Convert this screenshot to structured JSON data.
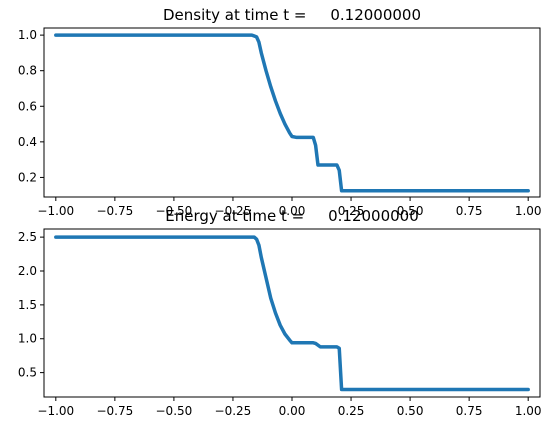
{
  "chart_data": [
    {
      "type": "line",
      "title": "Density at time t =     0.12000000",
      "xlabel": "",
      "ylabel": "",
      "xlim": [
        -1.05,
        1.05
      ],
      "ylim": [
        0.09,
        1.04
      ],
      "xticks": [
        -1.0,
        -0.75,
        -0.5,
        -0.25,
        0.0,
        0.25,
        0.5,
        0.75,
        1.0
      ],
      "xtick_labels": [
        "−1.00",
        "−0.75",
        "−0.50",
        "−0.25",
        "0.00",
        "0.25",
        "0.50",
        "0.75",
        "1.00"
      ],
      "yticks": [
        0.2,
        0.4,
        0.6,
        0.8,
        1.0
      ],
      "ytick_labels": [
        "0.2",
        "0.4",
        "0.6",
        "0.8",
        "1.0"
      ],
      "grid": false,
      "color": "#1f77b4",
      "series": [
        {
          "x": [
            -1.0,
            -0.17,
            -0.15,
            -0.14,
            -0.13,
            -0.11,
            -0.09,
            -0.07,
            -0.05,
            -0.03,
            -0.01,
            0.0,
            0.02,
            0.09,
            0.1,
            0.11,
            0.19,
            0.2,
            0.21,
            1.0
          ],
          "y": [
            1.0,
            1.0,
            0.99,
            0.96,
            0.9,
            0.8,
            0.71,
            0.63,
            0.56,
            0.5,
            0.45,
            0.43,
            0.425,
            0.425,
            0.38,
            0.27,
            0.27,
            0.24,
            0.125,
            0.125
          ]
        }
      ]
    },
    {
      "type": "line",
      "title": "Energy at time t =     0.12000000",
      "xlabel": "",
      "ylabel": "",
      "xlim": [
        -1.05,
        1.05
      ],
      "ylim": [
        0.14,
        2.62
      ],
      "xticks": [
        -1.0,
        -0.75,
        -0.5,
        -0.25,
        0.0,
        0.25,
        0.5,
        0.75,
        1.0
      ],
      "xtick_labels": [
        "−1.00",
        "−0.75",
        "−0.50",
        "−0.25",
        "0.00",
        "0.25",
        "0.50",
        "0.75",
        "1.00"
      ],
      "yticks": [
        0.5,
        1.0,
        1.5,
        2.0,
        2.5
      ],
      "ytick_labels": [
        "0.5",
        "1.0",
        "1.5",
        "2.0",
        "2.5"
      ],
      "grid": false,
      "color": "#1f77b4",
      "series": [
        {
          "x": [
            -1.0,
            -0.16,
            -0.15,
            -0.14,
            -0.13,
            -0.11,
            -0.09,
            -0.07,
            -0.05,
            -0.03,
            -0.01,
            0.0,
            0.02,
            0.09,
            0.1,
            0.12,
            0.19,
            0.2,
            0.21,
            1.0
          ],
          "y": [
            2.5,
            2.5,
            2.47,
            2.38,
            2.2,
            1.9,
            1.6,
            1.38,
            1.2,
            1.07,
            0.98,
            0.94,
            0.94,
            0.94,
            0.93,
            0.88,
            0.88,
            0.86,
            0.25,
            0.25
          ]
        }
      ]
    }
  ]
}
